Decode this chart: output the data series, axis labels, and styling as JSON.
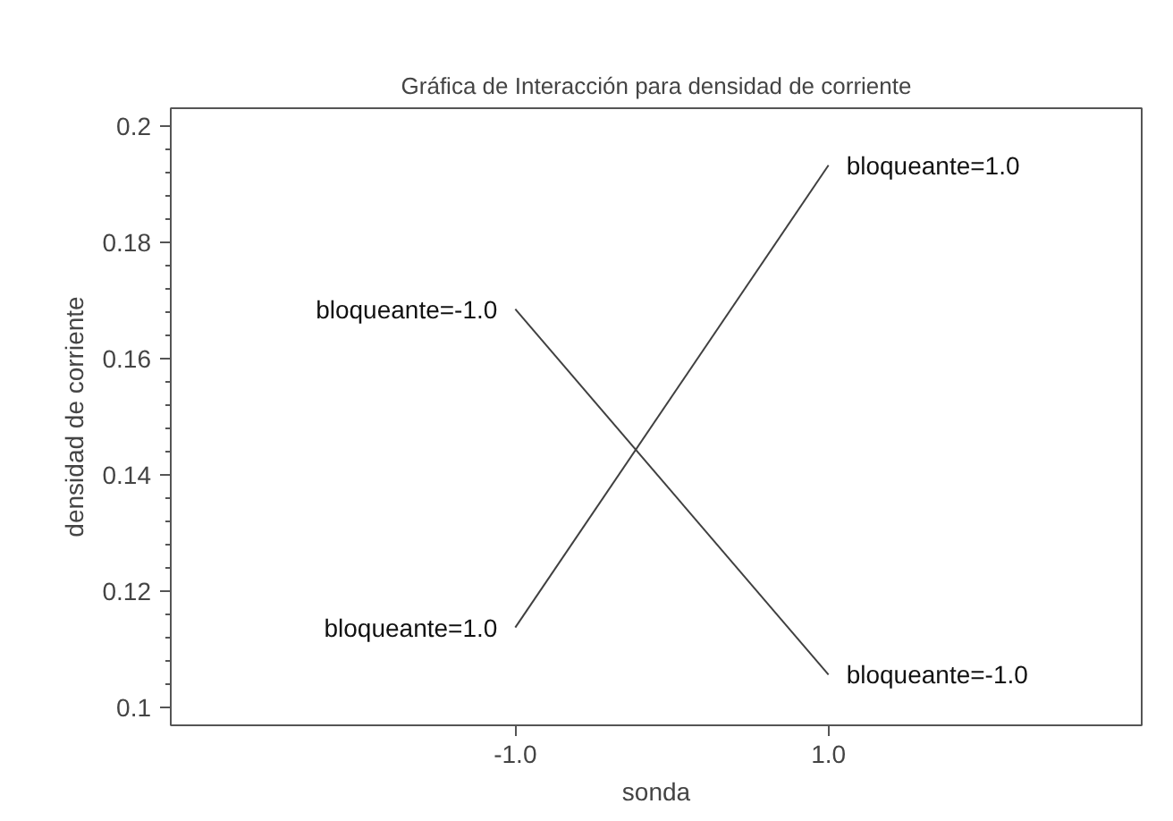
{
  "chart_data": {
    "type": "line",
    "title": "Gráfica de Interacción para densidad de corriente",
    "xlabel": "sonda",
    "ylabel": "densidad de corriente",
    "x": [
      -1.0,
      1.0
    ],
    "series": [
      {
        "name": "bloqueante=-1.0",
        "color": "#404040",
        "values": [
          0.1685,
          0.1057
        ]
      },
      {
        "name": "bloqueante=1.0",
        "color": "#404040",
        "values": [
          0.1138,
          0.1932
        ]
      }
    ],
    "xlim": [
      -3.2,
      3.0
    ],
    "ylim": [
      0.097,
      0.203
    ],
    "xticks": [
      {
        "value": -1.0,
        "label": "-1.0"
      },
      {
        "value": 1.0,
        "label": "1.0"
      }
    ],
    "yticks": [
      0.1,
      0.12,
      0.14,
      0.16,
      0.18,
      0.2
    ],
    "grid": false,
    "marker": "none",
    "line_style": "solid"
  }
}
